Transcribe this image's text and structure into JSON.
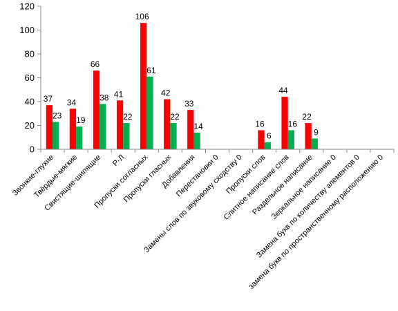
{
  "chart_data": {
    "type": "bar",
    "categories": [
      "Звонкие-глухие",
      "Твёрдые-мягкие",
      "Свистящие-шипящие",
      "Р-Л",
      "Пропуски согласных",
      "Пропуски гласных",
      "Добавления",
      "Перестановки 0",
      "Замены слов по звуковому сходству 0",
      "Пропуски слов",
      "Слитное написание слов",
      "Раздельное написание",
      "Зеркальное написание 0",
      "Замена букв по количеству элементов 0",
      "замена букв по пространственному расположению 0"
    ],
    "series": [
      {
        "values": [
          37,
          34,
          66,
          41,
          106,
          42,
          33,
          null,
          null,
          16,
          44,
          22,
          null,
          null,
          null
        ],
        "color": "#ff0000"
      },
      {
        "values": [
          23,
          19,
          38,
          22,
          61,
          22,
          14,
          null,
          null,
          6,
          16,
          9,
          null,
          null,
          null
        ],
        "color": "#00b050"
      }
    ],
    "y_ticks": [
      "0",
      "20",
      "40",
      "60",
      "80",
      "100",
      "120"
    ],
    "ylim": [
      0,
      120
    ],
    "grid": false,
    "data_labels": true
  }
}
